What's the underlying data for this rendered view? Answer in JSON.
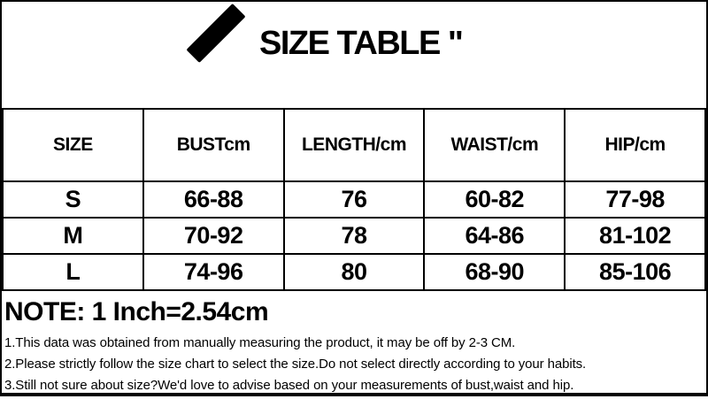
{
  "header": {
    "title": "SIZE TABLE \"",
    "logo_icon": "diagonal-brush-stroke"
  },
  "table": {
    "columns": [
      "SIZE",
      "BUSTcm",
      "LENGTH/cm",
      "WAIST/cm",
      "HIP/cm"
    ],
    "rows": [
      [
        "S",
        "66-88",
        "76",
        "60-82",
        "77-98"
      ],
      [
        "M",
        "70-92",
        "78",
        "64-86",
        "81-102"
      ],
      [
        "L",
        "74-96",
        "80",
        "68-90",
        "85-106"
      ]
    ]
  },
  "notes": {
    "heading": "NOTE: 1 Inch=2.54cm",
    "items": [
      "1.This data was obtained from manually measuring the product, it may be off by 2-3 CM.",
      "2.Please strictly follow the size chart to select the size.Do not select directly according to your habits.",
      "3.Still not sure about size?We'd love to advise based on your measurements of bust,waist and hip."
    ]
  },
  "colors": {
    "border": "#000000",
    "background": "#ffffff",
    "text": "#000000"
  }
}
